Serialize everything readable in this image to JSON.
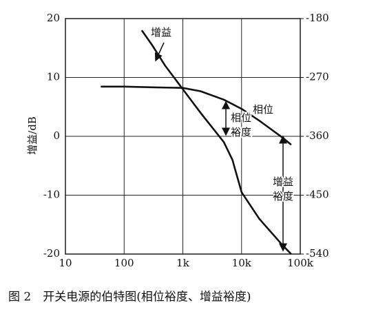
{
  "chart_data": {
    "type": "line",
    "caption": "图 2　开关电源的伯特图(相位裕度、增益裕度)",
    "ylabel": "增益/dB",
    "log_x": true,
    "grid": true,
    "xlim": [
      10,
      100000
    ],
    "xticks": [
      10,
      100,
      {
        "value": 1000,
        "label": "1k"
      },
      {
        "value": 10000,
        "label": "10k"
      },
      {
        "value": 100000,
        "label": "100k"
      }
    ],
    "ylim": [
      -20,
      20
    ],
    "yticks": [
      -20,
      -10,
      0,
      10,
      20
    ],
    "y2lim": [
      -540,
      -180
    ],
    "y2ticks": [
      -540,
      -450,
      -360,
      -270,
      -180
    ],
    "series": [
      {
        "name": "增益",
        "color": "#111111",
        "x": [
          200,
          300,
          500,
          1000,
          2000,
          5000,
          7000,
          10000,
          20000,
          50000,
          70000
        ],
        "values": [
          18,
          15.5,
          12,
          8,
          4,
          -1,
          -4,
          -9.5,
          -14,
          -18.5,
          -20
        ]
      },
      {
        "name": "相位",
        "color": "#111111",
        "axis": "y2",
        "x": [
          40,
          100,
          300,
          1000,
          2000,
          5000,
          10000,
          20000,
          50000,
          70000
        ],
        "values": [
          -284,
          -284,
          -285,
          -286,
          -291,
          -304,
          -318,
          -336,
          -362,
          -373
        ]
      }
    ],
    "annotations": [
      [
        "相位",
        "裕度"
      ],
      [
        "增益",
        "裕度"
      ]
    ]
  }
}
